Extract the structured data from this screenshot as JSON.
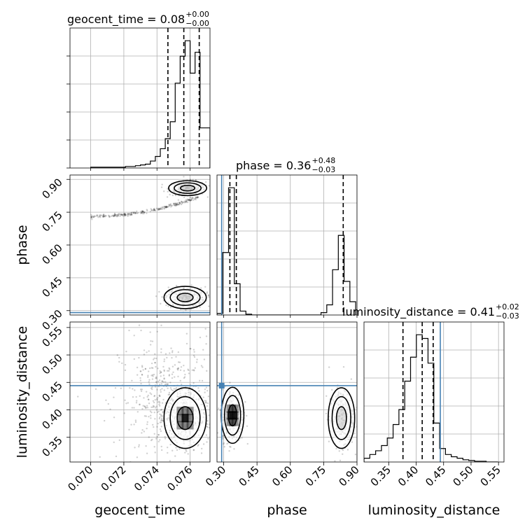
{
  "chart_data": {
    "type": "corner",
    "parameters": [
      "geocent_time",
      "phase",
      "luminosity_distance"
    ],
    "truth_color": "#4682b4",
    "truths": {
      "geocent_time": null,
      "phase": 0.291,
      "luminosity_distance": 0.444
    },
    "panels": [
      {
        "kind": "hist1d",
        "param": "geocent_time",
        "title": {
          "base": "geocent_time = 0.08",
          "sup": "+0.00",
          "sub": "−0.00"
        },
        "xlim": [
          0.06875,
          0.0772
        ],
        "bin_edges": [
          0.07,
          0.0703,
          0.0706,
          0.0709,
          0.0712,
          0.0715,
          0.0718,
          0.0721,
          0.0724,
          0.0727,
          0.073,
          0.0733,
          0.0736,
          0.0739,
          0.0742,
          0.0745,
          0.0748,
          0.0751,
          0.0754,
          0.0757,
          0.076,
          0.0763,
          0.0766,
          0.0769,
          0.0772
        ],
        "counts": [
          1,
          1,
          1,
          1,
          1,
          1,
          1,
          2,
          2,
          3,
          4,
          5,
          9,
          15,
          25,
          38,
          60,
          110,
          145,
          165,
          123,
          150,
          52,
          52
        ],
        "quantile_lines": [
          0.07466,
          0.07562,
          0.07655
        ]
      },
      {
        "kind": "hist1d",
        "param": "phase",
        "title": {
          "base": "phase = 0.36",
          "sup": "+0.48",
          "sub": "−0.03"
        },
        "xlim": [
          0.27,
          0.9
        ],
        "bin_edges": [
          0.27,
          0.296,
          0.322,
          0.348,
          0.374,
          0.4,
          0.426,
          0.452,
          0.478,
          0.504,
          0.53,
          0.556,
          0.582,
          0.608,
          0.634,
          0.66,
          0.686,
          0.712,
          0.738,
          0.764,
          0.79,
          0.816,
          0.842,
          0.868,
          0.894
        ],
        "counts": [
          2,
          80,
          163,
          40,
          5,
          1,
          0,
          0,
          0,
          0,
          0,
          0,
          0,
          0,
          0,
          0,
          0,
          0,
          3,
          13,
          58,
          102,
          43,
          17
        ],
        "quantile_lines": [
          0.328,
          0.357,
          0.838
        ]
      },
      {
        "kind": "hist1d",
        "param": "luminosity_distance",
        "title": {
          "base": "luminosity_distance = 0.41",
          "sup": "+0.02",
          "sub": "−0.03"
        },
        "xlim": [
          0.305,
          0.56
        ],
        "bin_edges": [
          0.305,
          0.3156,
          0.3262,
          0.3368,
          0.3474,
          0.358,
          0.3686,
          0.3792,
          0.3898,
          0.4004,
          0.411,
          0.4216,
          0.4322,
          0.4428,
          0.4534,
          0.464,
          0.4746,
          0.4852,
          0.4958,
          0.5064,
          0.517,
          0.5276,
          0.5382,
          0.5488
        ],
        "counts": [
          5,
          10,
          15,
          22,
          32,
          50,
          70,
          108,
          140,
          170,
          165,
          132,
          52,
          18,
          10,
          7,
          5,
          3,
          2,
          1,
          1,
          0,
          0
        ],
        "quantile_lines": [
          0.376,
          0.411,
          0.431
        ]
      },
      {
        "kind": "hist2d",
        "x": "geocent_time",
        "y": "phase",
        "xlim": [
          0.06875,
          0.0772
        ],
        "ylim": [
          0.28,
          0.92
        ],
        "clusters": [
          {
            "x": [
              0.07,
              0.0765
            ],
            "y": [
              0.73,
              0.82
            ],
            "shape": "trail"
          },
          {
            "x": [
              0.0745,
              0.0772
            ],
            "y": [
              0.82,
              0.9
            ],
            "shape": "blob"
          },
          {
            "x": [
              0.0742,
              0.0772
            ],
            "y": [
              0.3,
              0.42
            ],
            "shape": "blob"
          }
        ]
      },
      {
        "kind": "hist2d",
        "x": "geocent_time",
        "y": "luminosity_distance",
        "xlim": [
          0.06875,
          0.0772
        ],
        "ylim": [
          0.305,
          0.56
        ],
        "clusters": [
          {
            "x": [
              0.072,
              0.0772
            ],
            "y": [
              0.31,
              0.52
            ],
            "shape": "diffuse"
          },
          {
            "x": [
              0.0742,
              0.0772
            ],
            "y": [
              0.32,
              0.45
            ],
            "shape": "core"
          }
        ]
      },
      {
        "kind": "hist2d",
        "x": "phase",
        "y": "luminosity_distance",
        "xlim": [
          0.27,
          0.9
        ],
        "ylim": [
          0.305,
          0.56
        ],
        "clusters": [
          {
            "x": [
              0.28,
              0.4
            ],
            "y": [
              0.33,
              0.45
            ],
            "shape": "core"
          },
          {
            "x": [
              0.76,
              0.9
            ],
            "y": [
              0.32,
              0.45
            ],
            "shape": "blob"
          }
        ]
      }
    ],
    "ticks": {
      "geocent_time": [
        "0.070",
        "0.072",
        "0.074",
        "0.076"
      ],
      "phase": [
        "0.30",
        "0.45",
        "0.60",
        "0.75",
        "0.90"
      ],
      "luminosity_distance": [
        "0.35",
        "0.40",
        "0.45",
        "0.50",
        "0.55"
      ]
    },
    "xlabels": [
      "geocent_time",
      "phase",
      "luminosity_distance"
    ],
    "ylabels": [
      "phase",
      "luminosity_distance"
    ],
    "grid": true
  }
}
